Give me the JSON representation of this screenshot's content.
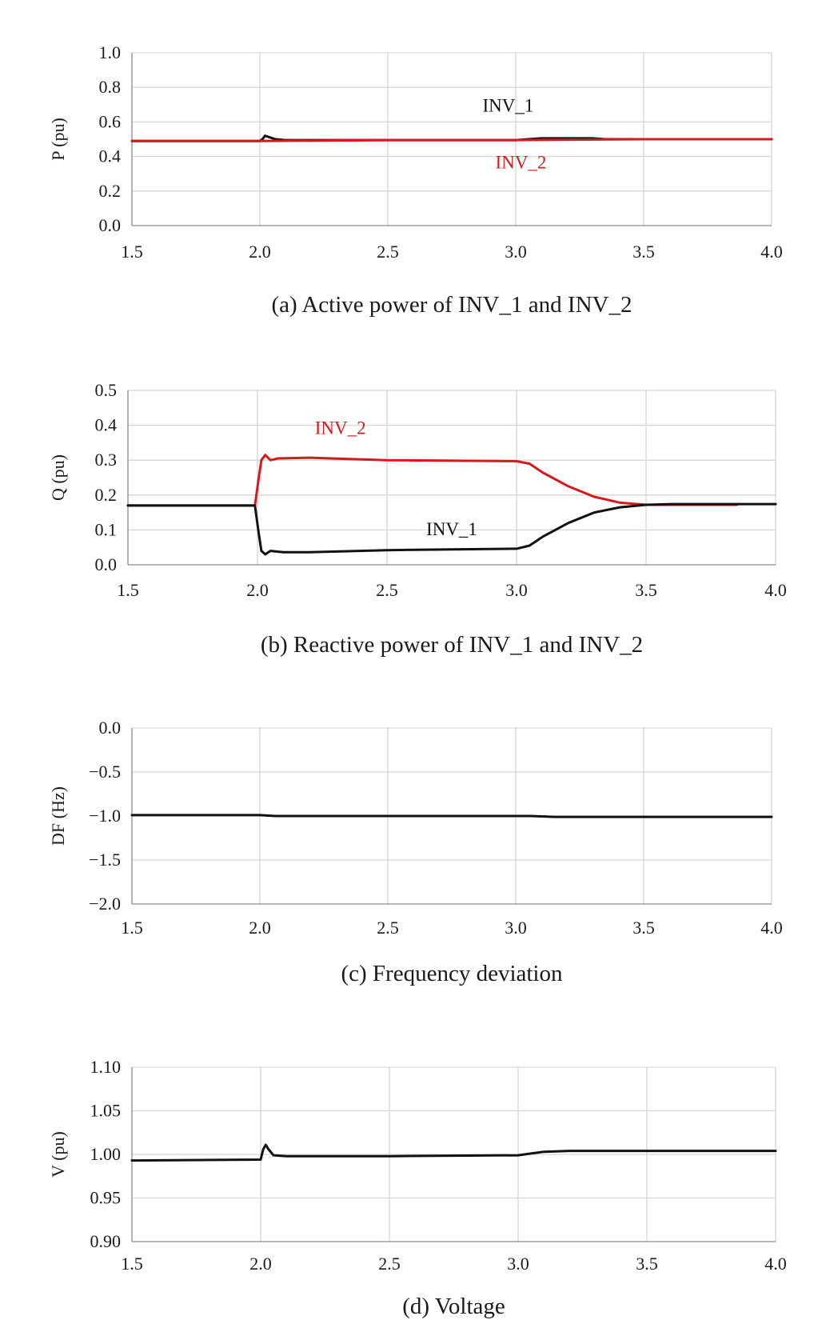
{
  "chart_data": [
    {
      "type": "line",
      "caption": "(a) Active power of INV_1 and INV_2",
      "ylabel": "P (pu)",
      "xlim": [
        1.5,
        4.0
      ],
      "ylim": [
        0.0,
        1.0
      ],
      "x_ticks": [
        "1.5",
        "2.0",
        "2.5",
        "3.0",
        "3.5",
        "4.0"
      ],
      "y_ticks": [
        "0.0",
        "0.2",
        "0.4",
        "0.6",
        "0.8",
        "1.0"
      ],
      "grid": true,
      "series": [
        {
          "name": "INV_1",
          "color": "#111111",
          "x": [
            1.5,
            2.0,
            2.01,
            2.02,
            2.04,
            2.06,
            2.1,
            2.5,
            3.0,
            3.05,
            3.1,
            3.3,
            3.35,
            3.5,
            4.0
          ],
          "y": [
            0.49,
            0.49,
            0.5,
            0.52,
            0.51,
            0.5,
            0.495,
            0.495,
            0.495,
            0.5,
            0.505,
            0.505,
            0.5,
            0.5,
            0.5
          ]
        },
        {
          "name": "INV_2",
          "color": "#d7191c",
          "x": [
            1.5,
            2.0,
            2.5,
            3.0,
            3.5,
            4.0
          ],
          "y": [
            0.49,
            0.49,
            0.495,
            0.495,
            0.5,
            0.5
          ]
        }
      ],
      "annotations": [
        {
          "text": "INV_1",
          "x": 2.97,
          "y": 0.66,
          "color": "#111111"
        },
        {
          "text": "INV_2",
          "x": 3.02,
          "y": 0.33,
          "color": "#d7191c"
        }
      ]
    },
    {
      "type": "line",
      "caption": "(b) Reactive power of INV_1 and INV_2",
      "ylabel": "Q (pu)",
      "xlim": [
        1.5,
        4.0
      ],
      "ylim": [
        0.0,
        0.5
      ],
      "x_ticks": [
        "1.5",
        "2.0",
        "2.5",
        "3.0",
        "3.5",
        "4.0"
      ],
      "y_ticks": [
        "0.0",
        "0.1",
        "0.2",
        "0.3",
        "0.4",
        "0.5"
      ],
      "grid": true,
      "series": [
        {
          "name": "INV_2",
          "color": "#d7191c",
          "x": [
            1.5,
            1.99,
            2.005,
            2.015,
            2.03,
            2.05,
            2.08,
            2.2,
            2.5,
            3.0,
            3.05,
            3.1,
            3.2,
            3.3,
            3.4,
            3.5,
            3.85
          ],
          "y": [
            0.17,
            0.17,
            0.25,
            0.3,
            0.315,
            0.3,
            0.305,
            0.307,
            0.3,
            0.297,
            0.29,
            0.265,
            0.225,
            0.195,
            0.178,
            0.172,
            0.172
          ]
        },
        {
          "name": "INV_1",
          "color": "#111111",
          "x": [
            1.5,
            1.99,
            2.005,
            2.015,
            2.03,
            2.05,
            2.1,
            2.2,
            2.5,
            3.0,
            3.05,
            3.1,
            3.2,
            3.3,
            3.4,
            3.5,
            3.6,
            4.0
          ],
          "y": [
            0.17,
            0.17,
            0.09,
            0.04,
            0.03,
            0.04,
            0.036,
            0.036,
            0.042,
            0.046,
            0.055,
            0.08,
            0.12,
            0.15,
            0.165,
            0.172,
            0.174,
            0.174
          ]
        }
      ],
      "annotations": [
        {
          "text": "INV_2",
          "x": 2.32,
          "y": 0.375,
          "color": "#d7191c"
        },
        {
          "text": "INV_1",
          "x": 2.75,
          "y": 0.085,
          "color": "#111111"
        }
      ]
    },
    {
      "type": "line",
      "caption": "(c) Frequency deviation",
      "ylabel": "DF (Hz)",
      "xlim": [
        1.5,
        4.0
      ],
      "ylim": [
        -2.0,
        0.0
      ],
      "x_ticks": [
        "1.5",
        "2.0",
        "2.5",
        "3.0",
        "3.5",
        "4.0"
      ],
      "y_ticks": [
        "−2.0",
        "−1.5",
        "−1.0",
        "−0.5",
        "0.0"
      ],
      "grid": true,
      "series": [
        {
          "name": "",
          "color": "#111111",
          "x": [
            1.5,
            2.0,
            2.06,
            2.5,
            3.0,
            3.06,
            3.15,
            3.5,
            4.0
          ],
          "y": [
            -0.99,
            -0.99,
            -1.0,
            -1.0,
            -1.0,
            -1.0,
            -1.01,
            -1.01,
            -1.01
          ]
        }
      ],
      "annotations": []
    },
    {
      "type": "line",
      "caption": "(d) Voltage",
      "ylabel": "V (pu)",
      "xlim": [
        1.5,
        4.0
      ],
      "ylim": [
        0.9,
        1.1
      ],
      "x_ticks": [
        "1.5",
        "2.0",
        "2.5",
        "3.0",
        "3.5",
        "4.0"
      ],
      "y_ticks": [
        "0.90",
        "0.95",
        "1.00",
        "1.05",
        "1.10"
      ],
      "grid": true,
      "series": [
        {
          "name": "",
          "color": "#111111",
          "x": [
            1.5,
            2.0,
            2.01,
            2.02,
            2.03,
            2.05,
            2.1,
            2.5,
            3.0,
            3.05,
            3.1,
            3.2,
            3.5,
            4.0
          ],
          "y": [
            0.993,
            0.994,
            1.006,
            1.011,
            1.006,
            0.999,
            0.998,
            0.998,
            0.999,
            1.001,
            1.003,
            1.004,
            1.004,
            1.004
          ]
        }
      ],
      "annotations": []
    }
  ]
}
